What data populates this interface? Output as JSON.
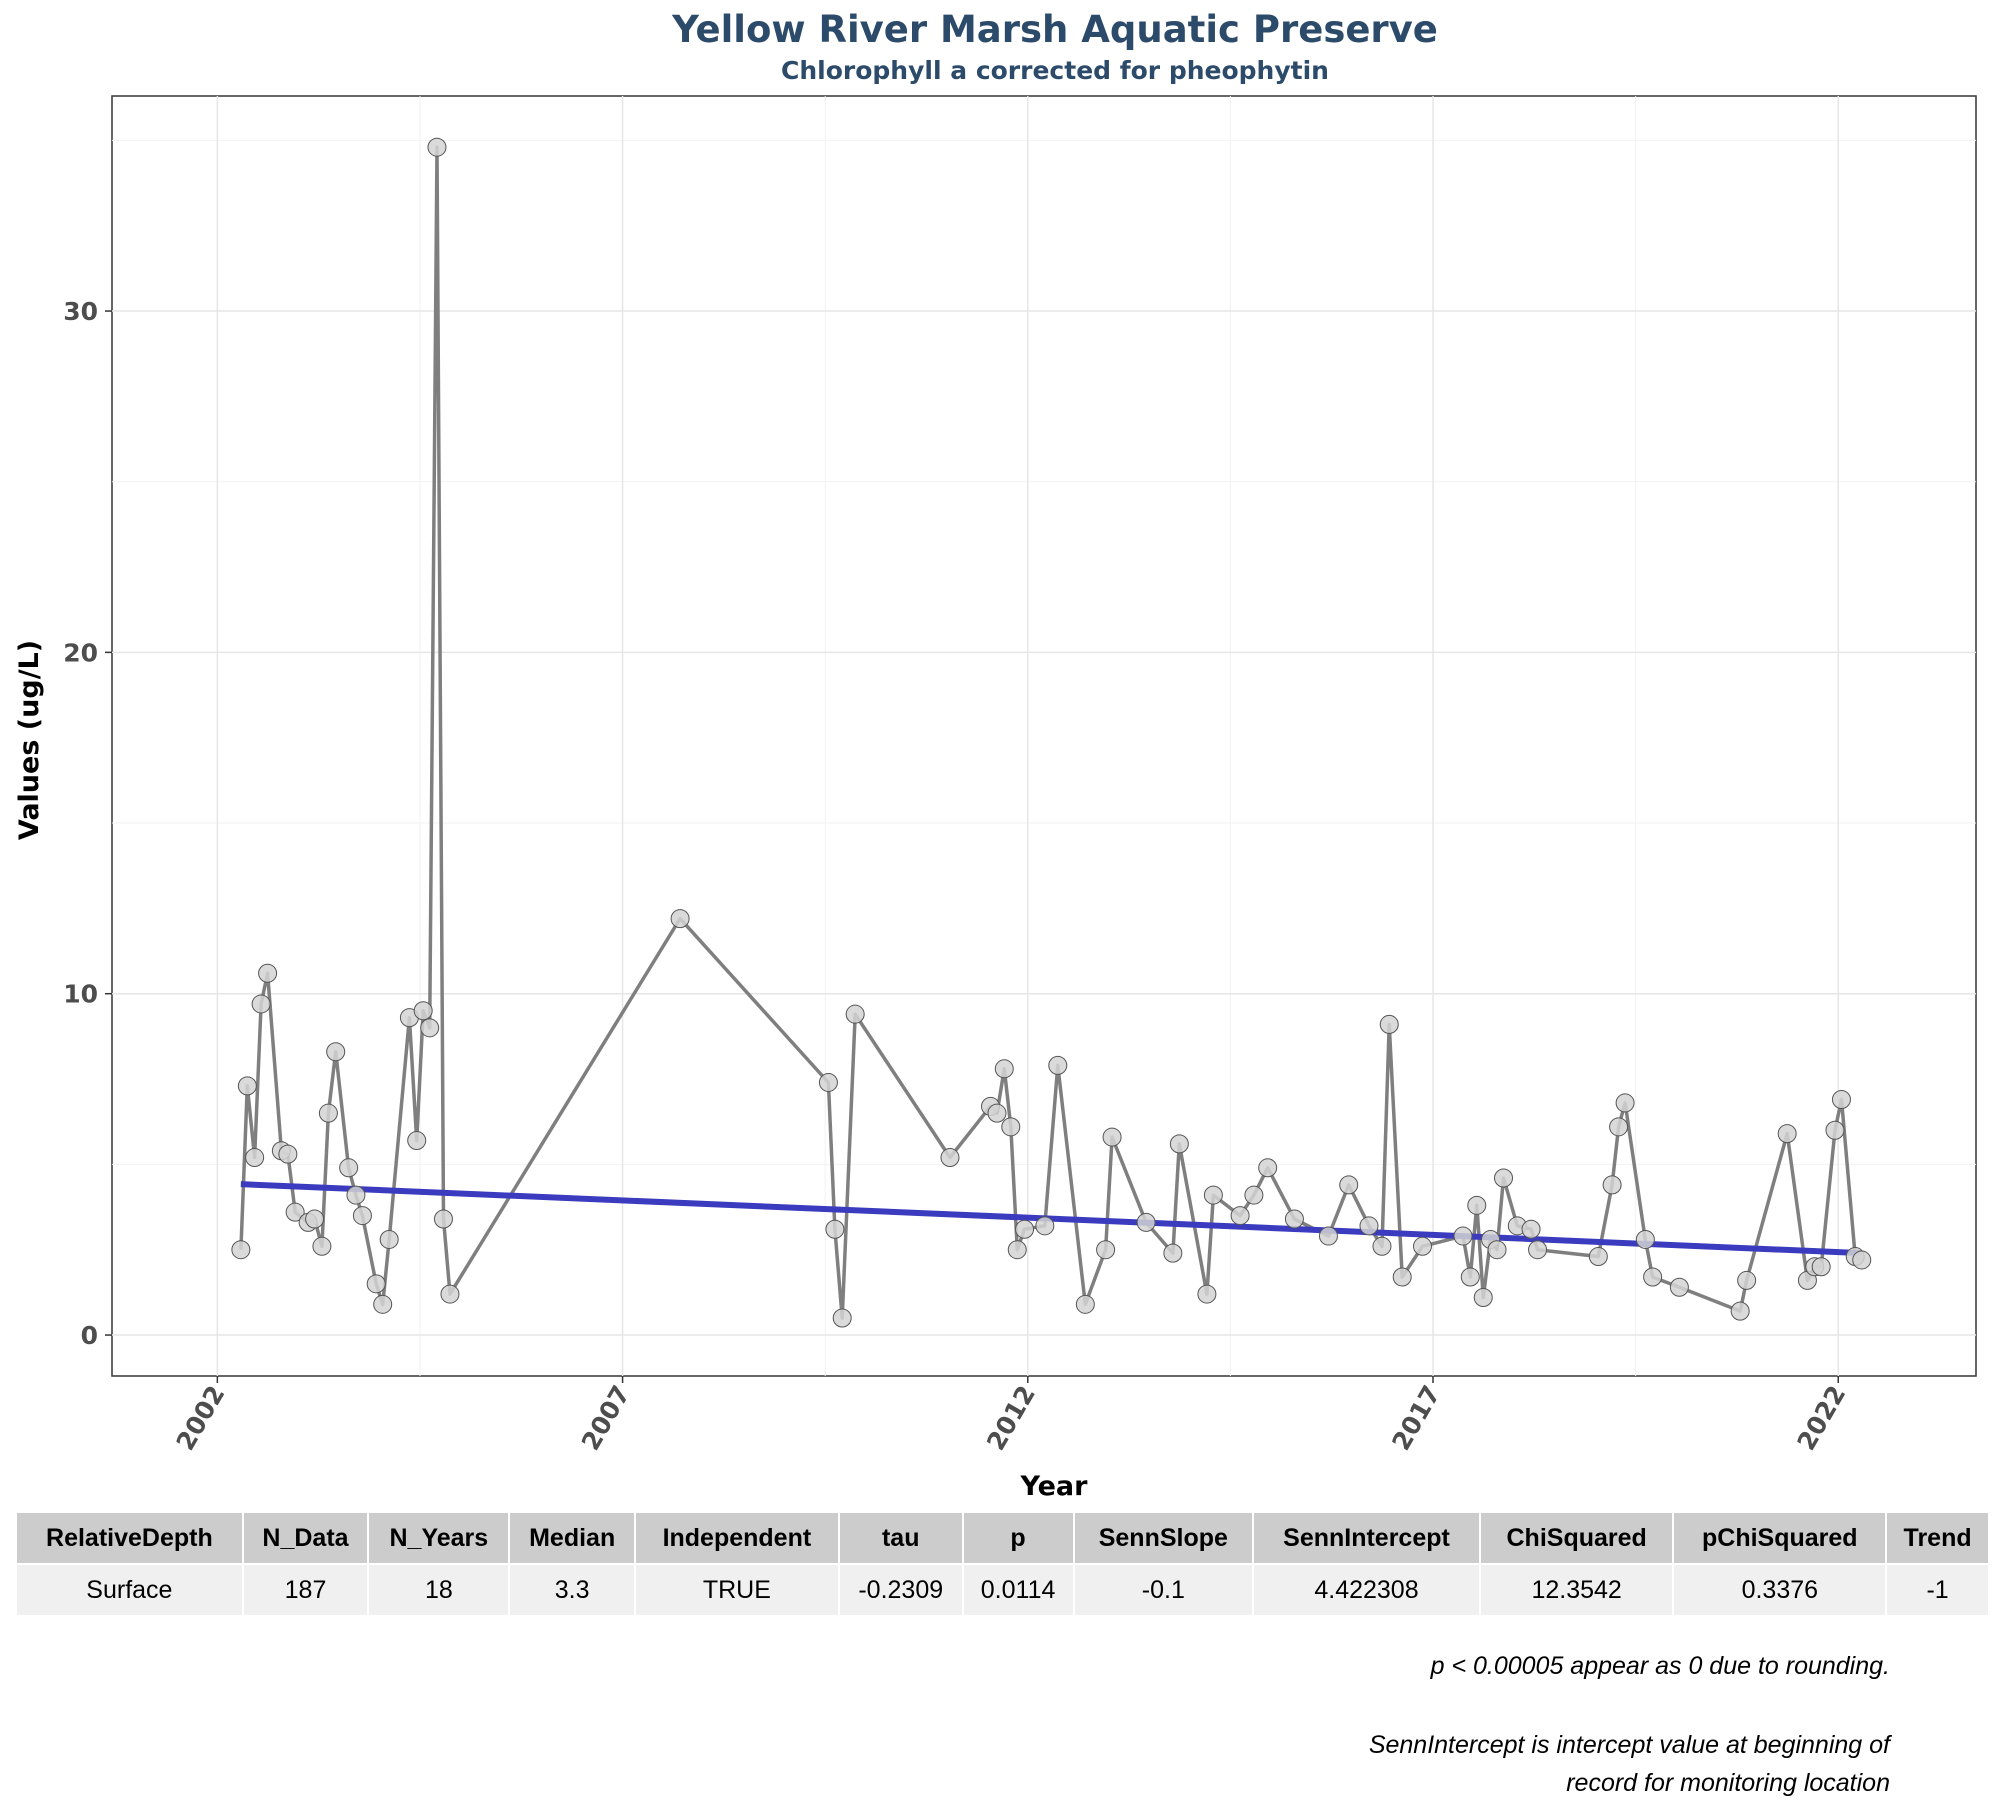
{
  "header": {
    "title": "Yellow River Marsh Aquatic Preserve",
    "subtitle": "Chlorophyll a corrected for pheophytin"
  },
  "chart_data": {
    "type": "line",
    "title": "Yellow River Marsh Aquatic Preserve",
    "subtitle": "Chlorophyll a corrected for pheophytin",
    "xlabel": "Year",
    "ylabel": "Values (ug/L)",
    "xlim": [
      2000.7,
      2023.7
    ],
    "ylim": [
      -1.2,
      36.3
    ],
    "x_ticks": [
      2002,
      2007,
      2012,
      2017,
      2022
    ],
    "y_ticks": [
      0,
      10,
      20,
      30
    ],
    "grid": true,
    "colors": {
      "series": "#7f7f7f",
      "points_fill": "#d3d3d3",
      "trend": "#3b3bbf"
    },
    "series": [
      {
        "x": [
          2002.29,
          2002.37,
          2002.46,
          2002.54,
          2002.62,
          2002.79,
          2002.87,
          2002.96,
          2003.12,
          2003.2,
          2003.29,
          2003.37,
          2003.46,
          2003.62,
          2003.71,
          2003.79,
          2003.96,
          2004.04,
          2004.12,
          2004.37,
          2004.46,
          2004.54,
          2004.62,
          2004.71,
          2004.79,
          2004.87,
          2007.71,
          2009.54,
          2009.62,
          2009.71,
          2009.87,
          2011.04,
          2011.54,
          2011.62,
          2011.71,
          2011.79,
          2011.87,
          2011.96,
          2012.21,
          2012.37,
          2012.71,
          2012.96,
          2013.04,
          2013.46,
          2013.79,
          2013.87,
          2014.21,
          2014.29,
          2014.62,
          2014.79,
          2014.96,
          2015.29,
          2015.71,
          2015.96,
          2016.21,
          2016.37,
          2016.46,
          2016.62,
          2016.87,
          2017.37,
          2017.46,
          2017.54,
          2017.62,
          2017.71,
          2017.79,
          2017.87,
          2018.04,
          2018.21,
          2018.29,
          2019.04,
          2019.21,
          2019.29,
          2019.37,
          2019.62,
          2019.71,
          2020.04,
          2020.79,
          2020.87,
          2021.37,
          2021.62,
          2021.71,
          2021.79,
          2021.96,
          2022.04,
          2022.21,
          2022.29
        ],
        "values": [
          2.5,
          7.3,
          5.2,
          9.7,
          10.6,
          5.4,
          5.3,
          3.6,
          3.3,
          3.4,
          2.6,
          6.5,
          8.3,
          4.9,
          4.1,
          3.5,
          1.5,
          0.9,
          2.8,
          9.3,
          5.7,
          9.5,
          9.0,
          34.8,
          3.4,
          1.2,
          12.2,
          7.4,
          3.1,
          0.5,
          9.4,
          5.2,
          6.7,
          6.5,
          7.8,
          6.1,
          2.5,
          3.1,
          3.2,
          7.9,
          0.9,
          2.5,
          5.8,
          3.3,
          2.4,
          5.6,
          1.2,
          4.1,
          3.5,
          4.1,
          4.9,
          3.4,
          2.9,
          4.4,
          3.2,
          2.6,
          9.1,
          1.7,
          2.6,
          2.9,
          1.7,
          3.8,
          1.1,
          2.8,
          2.5,
          4.6,
          3.2,
          3.1,
          2.5,
          2.3,
          4.4,
          6.1,
          6.8,
          2.8,
          1.7,
          1.4,
          0.7,
          1.6,
          5.9,
          1.6,
          2.0,
          2.0,
          6.0,
          6.9,
          2.3,
          2.2
        ],
        "trend": {
          "x": [
            2002.29,
            2022.29
          ],
          "values": [
            4.42,
            2.4
          ]
        }
      }
    ]
  },
  "table": {
    "headers": [
      "RelativeDepth",
      "N_Data",
      "N_Years",
      "Median",
      "Independent",
      "tau",
      "p",
      "SennSlope",
      "SennIntercept",
      "ChiSquared",
      "pChiSquared",
      "Trend"
    ],
    "rows": [
      [
        "Surface",
        "187",
        "18",
        "3.3",
        "TRUE",
        "-0.2309",
        "0.0114",
        "-0.1",
        "4.422308",
        "12.3542",
        "0.3376",
        "-1"
      ]
    ]
  },
  "notes": {
    "rounding": "p < 0.00005 appear as 0 due to rounding.",
    "intercept_line1": "SennIntercept is intercept value at beginning of",
    "intercept_line2": "record for monitoring location"
  }
}
